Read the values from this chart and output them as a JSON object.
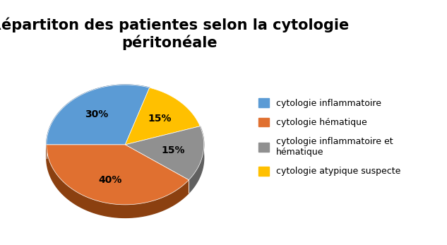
{
  "title": "Répartiton des patientes selon la cytologie\npéritonéale",
  "title_fontsize": 15,
  "title_fontweight": "bold",
  "slices": [
    30,
    40,
    15,
    15
  ],
  "pct_labels": [
    "30%",
    "40%",
    "15%",
    "15%"
  ],
  "colors": [
    "#5B9BD5",
    "#E07030",
    "#909090",
    "#FFC000"
  ],
  "shadow_colors": [
    "#3A6A99",
    "#8B4010",
    "#606060",
    "#B08000"
  ],
  "legend_labels": [
    "cytologie inflammatoire",
    "cytologie hématique",
    "cytologie inflammatoire et\nhématique",
    "cytologie atypique suspecte"
  ],
  "startangle": 72,
  "label_fontsize": 10,
  "background_color": "#FFFFFF",
  "figsize": [
    6.33,
    3.47
  ],
  "dpi": 100
}
